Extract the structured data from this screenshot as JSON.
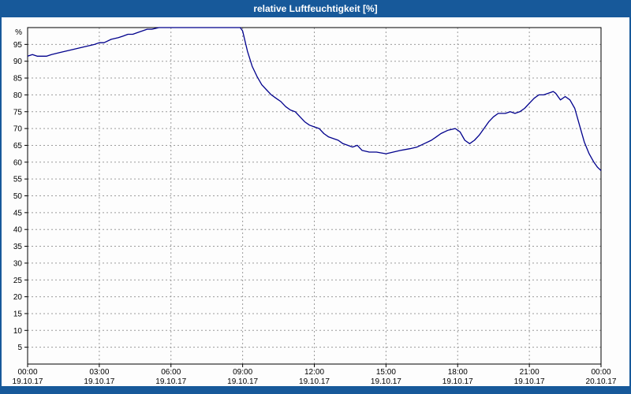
{
  "window": {
    "title": "relative Luftfeuchtigkeit [%]",
    "title_bar_color": "#17599a"
  },
  "chart_data": {
    "type": "line",
    "title": "relative Luftfeuchtigkeit [%]",
    "ylabel": "%",
    "ylim": [
      0,
      100
    ],
    "ytick_min": 5,
    "ytick_max": 95,
    "ytick_step": 5,
    "x_hours_range": [
      0,
      24
    ],
    "x_gridline_step_hours": 3,
    "grid": true,
    "legend": "none",
    "line_color": "#00008c",
    "grid_color": "#9b9b9b",
    "x_ticks": [
      {
        "time": "00:00",
        "date": "19.10.17"
      },
      {
        "time": "03:00",
        "date": "19.10.17"
      },
      {
        "time": "06:00",
        "date": "19.10.17"
      },
      {
        "time": "09:00",
        "date": "19.10.17"
      },
      {
        "time": "12:00",
        "date": "19.10.17"
      },
      {
        "time": "15:00",
        "date": "19.10.17"
      },
      {
        "time": "18:00",
        "date": "19.10.17"
      },
      {
        "time": "21:00",
        "date": "19.10.17"
      },
      {
        "time": "00:00",
        "date": "20.10.17"
      }
    ],
    "series": [
      {
        "name": "relative Luftfeuchtigkeit [%]",
        "points": [
          [
            0,
            91.5
          ],
          [
            0.2,
            92
          ],
          [
            0.4,
            91.5
          ],
          [
            0.8,
            91.5
          ],
          [
            1,
            92
          ],
          [
            1.3,
            92.5
          ],
          [
            1.6,
            93
          ],
          [
            1.9,
            93.5
          ],
          [
            2.2,
            94
          ],
          [
            2.5,
            94.5
          ],
          [
            2.8,
            95
          ],
          [
            3,
            95.5
          ],
          [
            3.2,
            95.5
          ],
          [
            3.5,
            96.5
          ],
          [
            3.8,
            97
          ],
          [
            4,
            97.5
          ],
          [
            4.2,
            98
          ],
          [
            4.4,
            98
          ],
          [
            4.6,
            98.5
          ],
          [
            4.8,
            99
          ],
          [
            5,
            99.5
          ],
          [
            5.2,
            99.5
          ],
          [
            5.5,
            100
          ],
          [
            6,
            100
          ],
          [
            6.5,
            100
          ],
          [
            7,
            100
          ],
          [
            7.5,
            100
          ],
          [
            8,
            100
          ],
          [
            8.5,
            100
          ],
          [
            8.9,
            100
          ],
          [
            9,
            99
          ],
          [
            9.2,
            93
          ],
          [
            9.4,
            88.5
          ],
          [
            9.6,
            85.5
          ],
          [
            9.8,
            83
          ],
          [
            10,
            81.5
          ],
          [
            10.2,
            80
          ],
          [
            10.4,
            79
          ],
          [
            10.6,
            78
          ],
          [
            10.8,
            76.5
          ],
          [
            11,
            75.5
          ],
          [
            11.2,
            75
          ],
          [
            11.4,
            73.5
          ],
          [
            11.6,
            72
          ],
          [
            11.8,
            71
          ],
          [
            12,
            70.5
          ],
          [
            12.2,
            70
          ],
          [
            12.4,
            68.5
          ],
          [
            12.6,
            67.5
          ],
          [
            12.8,
            67
          ],
          [
            13,
            66.5
          ],
          [
            13.2,
            65.5
          ],
          [
            13.4,
            65
          ],
          [
            13.6,
            64.5
          ],
          [
            13.8,
            65
          ],
          [
            14,
            63.5
          ],
          [
            14.3,
            63
          ],
          [
            14.6,
            63
          ],
          [
            15,
            62.5
          ],
          [
            15.3,
            63
          ],
          [
            15.6,
            63.5
          ],
          [
            16,
            64
          ],
          [
            16.3,
            64.5
          ],
          [
            16.6,
            65.5
          ],
          [
            16.9,
            66.5
          ],
          [
            17.1,
            67.5
          ],
          [
            17.3,
            68.5
          ],
          [
            17.6,
            69.5
          ],
          [
            17.9,
            70
          ],
          [
            18.1,
            69
          ],
          [
            18.3,
            66.5
          ],
          [
            18.5,
            65.5
          ],
          [
            18.7,
            66.5
          ],
          [
            18.9,
            68
          ],
          [
            19.1,
            70
          ],
          [
            19.3,
            72
          ],
          [
            19.5,
            73.5
          ],
          [
            19.7,
            74.5
          ],
          [
            20,
            74.5
          ],
          [
            20.2,
            75
          ],
          [
            20.4,
            74.5
          ],
          [
            20.6,
            75
          ],
          [
            20.8,
            76
          ],
          [
            21,
            77.5
          ],
          [
            21.2,
            79
          ],
          [
            21.4,
            80
          ],
          [
            21.6,
            80
          ],
          [
            21.8,
            80.5
          ],
          [
            22,
            81
          ],
          [
            22.1,
            80.5
          ],
          [
            22.3,
            78.5
          ],
          [
            22.5,
            79.5
          ],
          [
            22.7,
            78.5
          ],
          [
            22.9,
            76
          ],
          [
            23.1,
            71
          ],
          [
            23.3,
            66
          ],
          [
            23.5,
            62.5
          ],
          [
            23.7,
            60
          ],
          [
            23.85,
            58.5
          ],
          [
            24,
            57.5
          ]
        ]
      }
    ]
  }
}
